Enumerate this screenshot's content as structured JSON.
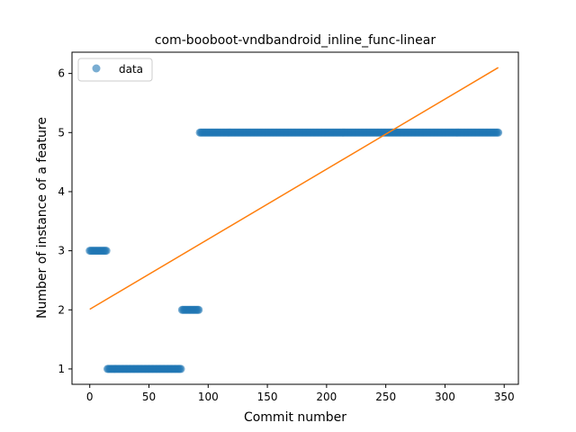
{
  "chart_data": {
    "type": "scatter",
    "title": "com-booboot-vndbandroid_inline_func-linear",
    "xlabel": "Commit number",
    "ylabel": "Number of instance of a feature",
    "xlim": [
      -15,
      362
    ],
    "ylim": [
      0.74,
      6.36
    ],
    "xticks": [
      0,
      50,
      100,
      150,
      200,
      250,
      300,
      350
    ],
    "yticks": [
      1,
      2,
      3,
      4,
      5,
      6
    ],
    "legend_position": "upper-left",
    "series": [
      {
        "name": "data",
        "kind": "points",
        "color": "#1f77b4",
        "segments": [
          {
            "x_start": 0,
            "x_end": 14,
            "y": 3
          },
          {
            "x_start": 15,
            "x_end": 77,
            "y": 1
          },
          {
            "x_start": 78,
            "x_end": 92,
            "y": 2
          },
          {
            "x_start": 93,
            "x_end": 345,
            "y": 5
          }
        ]
      },
      {
        "kind": "line",
        "color": "#ff7f0e",
        "x": [
          0,
          345
        ],
        "y": [
          2.01,
          6.1
        ]
      }
    ]
  }
}
